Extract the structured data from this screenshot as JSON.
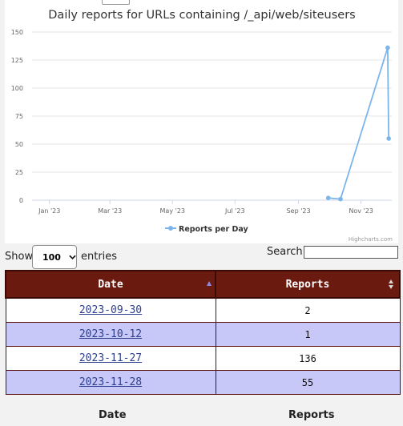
{
  "chart_data": {
    "type": "line",
    "title": "Daily reports for URLs containing /_api/web/siteusers",
    "xlabel": "",
    "ylabel": "",
    "x_tick_labels": [
      "Jan '23",
      "Mar '23",
      "May '23",
      "Jul '23",
      "Sep '23",
      "Nov '23"
    ],
    "x_tick_dates": [
      "2023-01-01",
      "2023-03-01",
      "2023-05-01",
      "2023-07-01",
      "2023-09-01",
      "2023-11-01"
    ],
    "x_range": [
      "2022-12-15",
      "2023-12-01"
    ],
    "ylim": [
      0,
      150
    ],
    "y_ticks": [
      0,
      25,
      50,
      75,
      100,
      125,
      150
    ],
    "grid": "horizontal",
    "legend_position": "bottom-center",
    "credit": "Highcharts.com",
    "series": [
      {
        "name": "Reports per Day",
        "color": "#7cb5ec",
        "x": [
          "2023-09-30",
          "2023-10-12",
          "2023-11-27",
          "2023-11-28"
        ],
        "values": [
          2,
          1,
          136,
          55
        ]
      }
    ]
  },
  "controls": {
    "show_label": "Show",
    "entries_value": "100",
    "entries_label": "entries",
    "search_label": "Search:",
    "search_value": ""
  },
  "table": {
    "headers": [
      "Date",
      "Reports"
    ],
    "rows": [
      {
        "date": "2023-09-30",
        "reports": "2"
      },
      {
        "date": "2023-10-12",
        "reports": "1"
      },
      {
        "date": "2023-11-27",
        "reports": "136"
      },
      {
        "date": "2023-11-28",
        "reports": "55"
      }
    ],
    "footer": [
      "Date",
      "Reports"
    ]
  }
}
